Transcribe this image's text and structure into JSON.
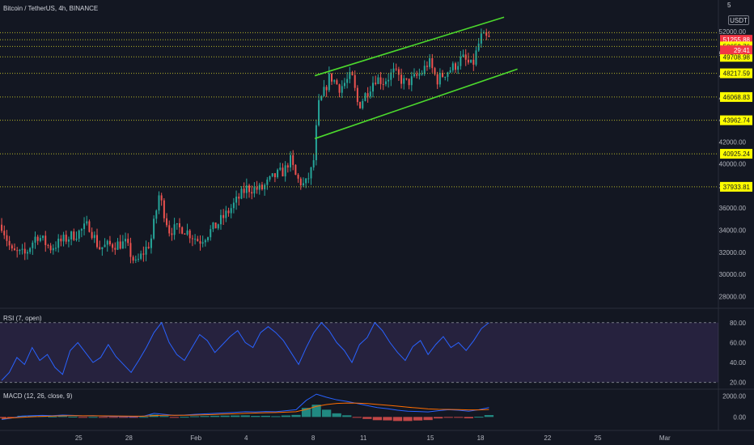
{
  "header": {
    "title": "Bitcoin / TetherUS, 4h, BINANCE",
    "currency": "USDT",
    "top_value": "5"
  },
  "chart_data": [
    {
      "type": "candlestick",
      "title": "Bitcoin / TetherUS, 4h, BINANCE",
      "y_ticks": [
        28000,
        30000,
        32000,
        34000,
        36000,
        38000,
        40000,
        42000,
        44000,
        46000,
        48000,
        50000,
        52000
      ],
      "y_tick_labels": [
        "28000.00",
        "30000.00",
        "32000.00",
        "34000.00",
        "36000.00",
        "38000.00",
        "40000.00",
        "42000.00",
        "44000.00",
        "46000.00",
        "48000.00",
        "50000.00",
        "52000.00"
      ],
      "ylim": [
        27000,
        54200
      ],
      "x_ticks": [
        {
          "label": "25",
          "day": 25
        },
        {
          "label": "28",
          "day": 28
        },
        {
          "label": "Feb",
          "day": 32
        },
        {
          "label": "4",
          "day": 35
        },
        {
          "label": "8",
          "day": 39
        },
        {
          "label": "11",
          "day": 42
        },
        {
          "label": "15",
          "day": 46
        },
        {
          "label": "18",
          "day": 49
        },
        {
          "label": "22",
          "day": 53
        },
        {
          "label": "25",
          "day": 56
        },
        {
          "label": "Mar",
          "day": 60
        }
      ],
      "x_range_days": [
        20.3,
        63.2
      ],
      "anchors": [
        [
          20.4,
          34500
        ],
        [
          21.0,
          32000
        ],
        [
          21.8,
          31800
        ],
        [
          22.5,
          33600
        ],
        [
          23.3,
          32400
        ],
        [
          24.2,
          33200
        ],
        [
          25.0,
          33800
        ],
        [
          25.6,
          34500
        ],
        [
          26.2,
          32400
        ],
        [
          27.0,
          32700
        ],
        [
          27.8,
          32800
        ],
        [
          28.4,
          30900
        ],
        [
          29.3,
          33000
        ],
        [
          29.8,
          37200
        ],
        [
          30.4,
          34000
        ],
        [
          31.2,
          34200
        ],
        [
          32.2,
          33000
        ],
        [
          33.2,
          34400
        ],
        [
          34.0,
          35800
        ],
        [
          35.0,
          37800
        ],
        [
          35.9,
          37700
        ],
        [
          36.7,
          38900
        ],
        [
          37.3,
          39400
        ],
        [
          37.6,
          40500
        ],
        [
          38.0,
          38700
        ],
        [
          38.5,
          38000
        ],
        [
          39.0,
          39800
        ],
        [
          39.3,
          45200
        ],
        [
          39.6,
          46300
        ],
        [
          40.0,
          48000
        ],
        [
          40.6,
          46900
        ],
        [
          41.3,
          48000
        ],
        [
          41.7,
          45200
        ],
        [
          42.2,
          46500
        ],
        [
          42.7,
          47800
        ],
        [
          43.2,
          47500
        ],
        [
          43.8,
          48300
        ],
        [
          44.5,
          47300
        ],
        [
          45.0,
          47700
        ],
        [
          45.5,
          48300
        ],
        [
          45.9,
          49300
        ],
        [
          46.4,
          47600
        ],
        [
          46.9,
          48300
        ],
        [
          47.4,
          48800
        ],
        [
          47.9,
          49600
        ],
        [
          48.5,
          48800
        ],
        [
          49.0,
          51500
        ],
        [
          49.5,
          51300
        ]
      ],
      "price_levels": [
        {
          "value": 51255.88,
          "label": "51255.88",
          "style": "current"
        },
        {
          "value": 50652.76,
          "label": "50652.76"
        },
        {
          "value": 49708.98,
          "label": "49708.98"
        },
        {
          "value": 48217.59,
          "label": "48217.59"
        },
        {
          "value": 46068.83,
          "label": "46068.83"
        },
        {
          "value": 43962.74,
          "label": "43962.74"
        },
        {
          "value": 40925.24,
          "label": "40925.24"
        },
        {
          "value": 37933.81,
          "label": "37933.81"
        }
      ],
      "countdown": "29:41",
      "extra_level": 51900,
      "channel_lines": [
        {
          "from": [
            39.1,
            48000
          ],
          "to": [
            50.4,
            53300
          ]
        },
        {
          "from": [
            39.1,
            42300
          ],
          "to": [
            51.2,
            48600
          ]
        }
      ],
      "colors": {
        "up": "#26a69a",
        "down": "#ef5350",
        "channel": "#4cd92d",
        "level_line": "#b5b52a",
        "level_label": "#ffff00",
        "current_label": "#f23645"
      }
    },
    {
      "type": "line",
      "title": "RSI (7, open)",
      "y_ticks": [
        20,
        40,
        60,
        80
      ],
      "y_tick_labels": [
        "20.00",
        "40.00",
        "60.00",
        "80.00"
      ],
      "ylim": [
        14,
        92
      ],
      "band": [
        20,
        80
      ],
      "series": [
        {
          "values": [
            22,
            30,
            45,
            38,
            55,
            42,
            48,
            35,
            28,
            52,
            60,
            50,
            40,
            45,
            58,
            46,
            38,
            30,
            42,
            55,
            70,
            80,
            60,
            48,
            42,
            55,
            68,
            62,
            50,
            58,
            66,
            72,
            60,
            55,
            70,
            76,
            70,
            62,
            50,
            38,
            55,
            70,
            80,
            72,
            60,
            52,
            40,
            58,
            65,
            80,
            72,
            60,
            50,
            42,
            56,
            62,
            48,
            58,
            66,
            55,
            60,
            52,
            62,
            74,
            80
          ]
        }
      ],
      "colors": {
        "line": "#2962ff",
        "band": "#7e57c2"
      }
    },
    {
      "type": "histogram_line",
      "title": "MACD (12, 26, close, 9)",
      "y_ticks": [
        0,
        2000
      ],
      "y_tick_labels": [
        "0.00",
        "2000.00"
      ],
      "ylim": [
        -1300,
        2600
      ],
      "macd": [
        -250,
        -100,
        80,
        120,
        150,
        120,
        180,
        150,
        100,
        120,
        80,
        60,
        50,
        20,
        80,
        350,
        250,
        150,
        180,
        250,
        300,
        350,
        400,
        450,
        500,
        480,
        520,
        500,
        600,
        700,
        1600,
        2200,
        1900,
        1650,
        1500,
        1300,
        1100,
        900,
        800,
        650,
        550,
        520,
        480,
        600,
        700,
        650,
        550,
        700,
        900
      ],
      "signal": [
        -150,
        -90,
        -30,
        20,
        60,
        80,
        110,
        120,
        115,
        115,
        105,
        95,
        85,
        70,
        72,
        130,
        160,
        160,
        165,
        185,
        210,
        240,
        275,
        310,
        350,
        380,
        410,
        430,
        460,
        505,
        730,
        1020,
        1200,
        1300,
        1340,
        1330,
        1290,
        1210,
        1130,
        1040,
        940,
        860,
        780,
        740,
        730,
        710,
        680,
        680,
        720
      ],
      "colors": {
        "macd": "#2962ff",
        "signal": "#ff6d00",
        "hist_up": "#26a69a",
        "hist_down": "#ef5350"
      }
    }
  ]
}
